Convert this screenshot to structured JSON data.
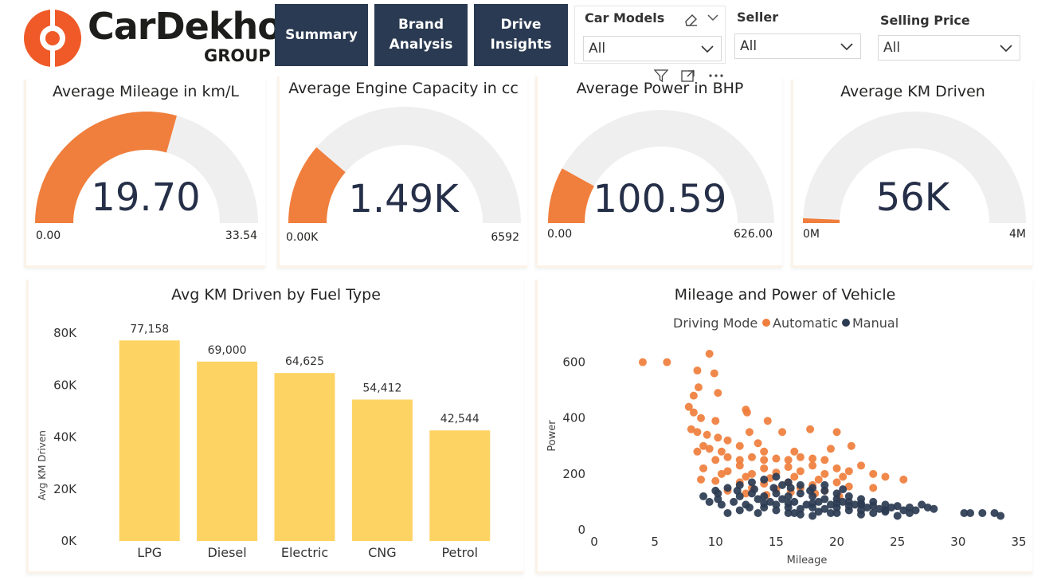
{
  "brand": {
    "name": "CarDekho",
    "sub": "GROUP",
    "accent": "#f05a28"
  },
  "nav": {
    "summary": "Summary",
    "brand_analysis": "Brand\nAnalysis",
    "drive_insights": "Drive\nInsights"
  },
  "filters": {
    "car_models": {
      "title": "Car Models",
      "value": "All"
    },
    "seller": {
      "title": "Seller",
      "value": "All"
    },
    "selling_price": {
      "title": "Selling Price",
      "value": "All"
    }
  },
  "kpis": {
    "mileage": {
      "title": "Average Mileage in km/L",
      "display": "19.70",
      "min_label": "0.00",
      "max_label": "33.54",
      "value": 19.7,
      "min": 0,
      "max": 33.54
    },
    "engine": {
      "title": "Average Engine Capacity in cc",
      "display": "1.49K",
      "min_label": "0.00K",
      "max_label": "6592",
      "value": 1490,
      "min": 0,
      "max": 6592
    },
    "power": {
      "title": "Average Power in BHP",
      "display": "100.59",
      "min_label": "0.00",
      "max_label": "626.00",
      "value": 100.59,
      "min": 0,
      "max": 626
    },
    "km": {
      "title": "Average KM Driven",
      "display": "56K",
      "min_label": "0M",
      "max_label": "4M",
      "value": 56000,
      "min": 0,
      "max": 4000000
    }
  },
  "colors": {
    "gauge_fill": "#f07e3c",
    "gauge_track": "#f0efef",
    "bar": "#fdd363",
    "automatic": "#f07e3c",
    "manual": "#2b3b52"
  },
  "chart_data": [
    {
      "type": "bar",
      "title": "Avg KM Driven by Fuel Type",
      "categories": [
        "LPG",
        "Diesel",
        "Electric",
        "CNG",
        "Petrol"
      ],
      "values": [
        77158,
        69000,
        64625,
        54412,
        42544
      ],
      "data_labels": [
        "77,158",
        "69,000",
        "64,625",
        "54,412",
        "42,544"
      ],
      "xlabel": "",
      "ylabel": "Avg KM Driven",
      "ylim": [
        0,
        80000
      ],
      "yticks": [
        0,
        20000,
        40000,
        60000,
        80000
      ],
      "ytick_labels": [
        "0K",
        "20K",
        "40K",
        "60K",
        "80K"
      ]
    },
    {
      "type": "scatter",
      "title": "Mileage and Power of Vehicle",
      "legend_title": "Driving Mode",
      "xlabel": "Mileage",
      "ylabel": "Power",
      "xlim": [
        0,
        35
      ],
      "ylim": [
        0,
        650
      ],
      "xticks": [
        0,
        5,
        10,
        15,
        20,
        25,
        30,
        35
      ],
      "yticks": [
        0,
        200,
        400,
        600
      ],
      "series": [
        {
          "name": "Automatic",
          "points": [
            [
              4,
              600
            ],
            [
              6,
              600
            ],
            [
              9.5,
              630
            ],
            [
              9.9,
              560
            ],
            [
              8.5,
              570
            ],
            [
              8.6,
              510
            ],
            [
              8.2,
              480
            ],
            [
              10.2,
              490
            ],
            [
              7.8,
              440
            ],
            [
              8.2,
              420
            ],
            [
              8.8,
              400
            ],
            [
              10,
              390
            ],
            [
              12.5,
              430
            ],
            [
              12.6,
              420
            ],
            [
              14.3,
              390
            ],
            [
              8,
              360
            ],
            [
              8.5,
              350
            ],
            [
              9.3,
              340
            ],
            [
              10.2,
              330
            ],
            [
              11,
              320
            ],
            [
              12.8,
              350
            ],
            [
              15.5,
              350
            ],
            [
              17.8,
              360
            ],
            [
              20,
              350
            ],
            [
              12,
              300
            ],
            [
              13.5,
              310
            ],
            [
              9,
              300
            ],
            [
              9.5,
              290
            ],
            [
              8.5,
              280
            ],
            [
              10.5,
              280
            ],
            [
              14,
              280
            ],
            [
              16.5,
              280
            ],
            [
              19.5,
              290
            ],
            [
              21.2,
              300
            ],
            [
              10,
              250
            ],
            [
              11,
              260
            ],
            [
              12,
              250
            ],
            [
              13,
              260
            ],
            [
              14,
              250
            ],
            [
              15,
              255
            ],
            [
              16,
              250
            ],
            [
              17,
              260
            ],
            [
              18,
              255
            ],
            [
              19,
              250
            ],
            [
              12,
              230
            ],
            [
              14,
              220
            ],
            [
              16,
              225
            ],
            [
              18,
              230
            ],
            [
              20,
              220
            ],
            [
              22,
              230
            ],
            [
              11,
              210
            ],
            [
              13,
              200
            ],
            [
              15,
              205
            ],
            [
              17,
              210
            ],
            [
              19,
              200
            ],
            [
              21,
              210
            ],
            [
              23,
              200
            ],
            [
              9,
              220
            ],
            [
              10.5,
              200
            ],
            [
              12.5,
              190
            ],
            [
              14.5,
              185
            ],
            [
              16.5,
              190
            ],
            [
              18.5,
              180
            ],
            [
              20.5,
              190
            ],
            [
              24,
              190
            ],
            [
              25.5,
              180
            ],
            [
              8.8,
              180
            ],
            [
              10,
              175
            ],
            [
              12,
              170
            ],
            [
              14,
              165
            ],
            [
              16,
              170
            ],
            [
              18,
              160
            ],
            [
              20,
              170
            ],
            [
              13,
              150
            ],
            [
              15,
              145
            ],
            [
              17,
              150
            ],
            [
              19,
              140
            ],
            [
              21,
              155
            ],
            [
              23,
              150
            ],
            [
              11,
              140
            ],
            [
              12.5,
              130
            ],
            [
              14.2,
              125
            ],
            [
              16.2,
              135
            ],
            [
              18.2,
              130
            ],
            [
              20.2,
              120
            ]
          ]
        },
        {
          "name": "Manual",
          "points": [
            [
              9,
              120
            ],
            [
              10,
              140
            ],
            [
              11,
              150
            ],
            [
              12,
              160
            ],
            [
              13,
              170
            ],
            [
              14,
              180
            ],
            [
              15,
              190
            ],
            [
              16,
              170
            ],
            [
              17,
              160
            ],
            [
              18,
              150
            ],
            [
              19,
              140
            ],
            [
              20,
              130
            ],
            [
              21,
              120
            ],
            [
              22,
              110
            ],
            [
              23,
              100
            ],
            [
              24,
              90
            ],
            [
              25,
              85
            ],
            [
              26,
              80
            ],
            [
              27,
              90
            ],
            [
              28,
              75
            ],
            [
              30.5,
              60
            ],
            [
              31,
              60
            ],
            [
              32,
              60
            ],
            [
              33,
              60
            ],
            [
              33.5,
              50
            ],
            [
              26,
              60
            ],
            [
              25,
              50
            ],
            [
              23,
              60
            ],
            [
              21,
              70
            ],
            [
              19.5,
              60
            ],
            [
              18,
              50
            ],
            [
              16.5,
              60
            ],
            [
              15,
              70
            ],
            [
              13.5,
              60
            ],
            [
              12,
              70
            ],
            [
              10.5,
              90
            ],
            [
              9.5,
              100
            ],
            [
              10.2,
              110
            ],
            [
              11.5,
              100
            ],
            [
              12.5,
              90
            ],
            [
              13.5,
              110
            ],
            [
              14.5,
              100
            ],
            [
              15.5,
              110
            ],
            [
              16.5,
              100
            ],
            [
              17.5,
              90
            ],
            [
              18.5,
              100
            ],
            [
              19.5,
              90
            ],
            [
              20.5,
              100
            ],
            [
              21.5,
              90
            ],
            [
              22.5,
              80
            ],
            [
              23.5,
              75
            ],
            [
              24.5,
              80
            ],
            [
              25.5,
              70
            ],
            [
              26.5,
              70
            ],
            [
              27.5,
              80
            ],
            [
              12,
              120
            ],
            [
              13,
              130
            ],
            [
              14,
              120
            ],
            [
              15,
              130
            ],
            [
              16,
              120
            ],
            [
              17,
              130
            ],
            [
              18,
              120
            ],
            [
              19,
              110
            ],
            [
              20,
              110
            ],
            [
              21,
              100
            ],
            [
              22,
              90
            ],
            [
              14,
              80
            ],
            [
              15,
              90
            ],
            [
              16,
              80
            ],
            [
              17,
              75
            ],
            [
              18,
              80
            ],
            [
              19,
              75
            ],
            [
              20,
              80
            ],
            [
              21,
              85
            ],
            [
              22,
              70
            ],
            [
              23,
              85
            ],
            [
              24,
              70
            ],
            [
              12.8,
              80
            ],
            [
              11.8,
              140
            ],
            [
              13.2,
              145
            ],
            [
              14.8,
              150
            ],
            [
              16.2,
              150
            ],
            [
              17.8,
              140
            ],
            [
              16,
              60
            ],
            [
              17,
              55
            ],
            [
              18.5,
              65
            ],
            [
              20,
              60
            ],
            [
              22,
              55
            ],
            [
              24,
              65
            ],
            [
              11,
              60
            ],
            [
              10.2,
              130
            ],
            [
              19,
              160
            ],
            [
              20.5,
              145
            ],
            [
              15.5,
              160
            ],
            [
              14,
              95
            ],
            [
              16,
              95
            ],
            [
              18,
              95
            ],
            [
              20,
              95
            ],
            [
              22,
              95
            ]
          ]
        }
      ]
    }
  ]
}
